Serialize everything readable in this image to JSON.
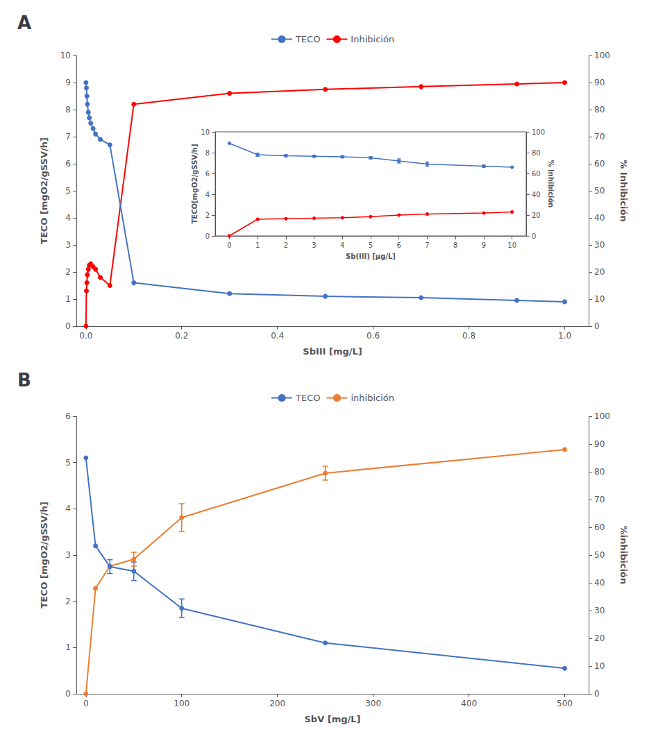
{
  "chart_data": [
    {
      "type": "line",
      "title": "A",
      "x": [
        0.0,
        0.001,
        0.002,
        0.003,
        0.005,
        0.007,
        0.01,
        0.015,
        0.02,
        0.03,
        0.05,
        0.1,
        0.3,
        0.5,
        0.7,
        0.9,
        1.0
      ],
      "xlabel": "SbIII [mg/L]",
      "ylabel": "TECO [mgO2/gSSV/h]",
      "y2label": "% Inhibición",
      "xlim": [
        -0.02,
        1.05
      ],
      "xticks": [
        {
          "value": 0,
          "label": "0.0"
        },
        0.2,
        0.4,
        0.6,
        0.8,
        {
          "value": 1,
          "label": "1.0"
        }
      ],
      "ylim": [
        0,
        10
      ],
      "yticks": [
        0,
        1,
        2,
        3,
        4,
        5,
        6,
        7,
        8,
        9,
        10
      ],
      "y2lim": [
        0,
        100
      ],
      "y2ticks": [
        0,
        10,
        20,
        30,
        40,
        50,
        60,
        70,
        80,
        90,
        100
      ],
      "grid": false,
      "legend": "top",
      "marker": "circle",
      "series": [
        {
          "name": "TECO",
          "color": "#4472C4",
          "values": [
            9.0,
            8.8,
            8.5,
            8.2,
            7.9,
            7.7,
            7.5,
            7.3,
            7.1,
            6.9,
            6.7,
            1.6,
            1.2,
            1.1,
            1.05,
            0.95,
            0.9
          ]
        },
        {
          "name": "Inhibición",
          "color": "#FF0000",
          "axis": "y2",
          "values": [
            0.0,
            13.0,
            16.0,
            19.0,
            21.0,
            22.5,
            23.0,
            22.0,
            21.0,
            18.0,
            15.0,
            82.0,
            86.0,
            87.5,
            88.5,
            89.5,
            90.0
          ]
        }
      ]
    },
    {
      "type": "line",
      "x": [
        0,
        1,
        2,
        3,
        4,
        5,
        6,
        7,
        9,
        10
      ],
      "xlabel": "Sb(III) [μg/L]",
      "ylabel": "TECO[mgO2/gSSV/h]",
      "y2label": "% Inhibición",
      "xlim": [
        -0.5,
        10.5
      ],
      "xticks": [
        0,
        1,
        2,
        3,
        4,
        5,
        6,
        7,
        8,
        9,
        10
      ],
      "ylim": [
        0,
        10
      ],
      "yticks": [
        0,
        2,
        4,
        6,
        8,
        10
      ],
      "y2lim": [
        0,
        100
      ],
      "y2ticks": [
        0,
        20,
        40,
        60,
        80,
        100
      ],
      "grid": false,
      "marker": "circle",
      "series": [
        {
          "color": "#4472C4",
          "values": [
            8.9,
            7.8,
            7.7,
            7.65,
            7.6,
            7.5,
            7.2,
            6.9,
            6.7,
            6.6
          ],
          "errors": [
            0.0,
            0.15,
            0.1,
            0.1,
            0.1,
            0.1,
            0.2,
            0.2,
            0.1,
            0.0
          ]
        },
        {
          "color": "#FF0000",
          "axis": "y2",
          "values": [
            0.0,
            16.0,
            16.5,
            17.0,
            17.5,
            18.5,
            20.0,
            21.0,
            22.0,
            23.0
          ]
        }
      ]
    },
    {
      "type": "line",
      "title": "B",
      "x": [
        0,
        10,
        25,
        50,
        100,
        250,
        500
      ],
      "xlabel": "SbV [mg/L]",
      "ylabel": "TECO [mgO2/gSSV/h]",
      "y2label": "%inhibición",
      "xlim": [
        -10,
        525
      ],
      "xticks": [
        0,
        100,
        200,
        300,
        400,
        500
      ],
      "ylim": [
        0,
        6
      ],
      "yticks": [
        0,
        1,
        2,
        3,
        4,
        5,
        6
      ],
      "y2lim": [
        0,
        100
      ],
      "y2ticks": [
        0,
        10,
        20,
        30,
        40,
        50,
        60,
        70,
        80,
        90,
        100
      ],
      "grid": false,
      "legend": "top",
      "marker": "circle",
      "series": [
        {
          "name": "TECO",
          "color": "#4472C4",
          "values": [
            5.1,
            3.2,
            2.75,
            2.65,
            1.85,
            1.1,
            0.55
          ],
          "errors": [
            0.0,
            0.0,
            0.15,
            0.2,
            0.2,
            0.0,
            0.0
          ]
        },
        {
          "name": "inhibición",
          "color": "#ED7D31",
          "axis": "y2",
          "values": [
            0.0,
            38.0,
            46.0,
            48.5,
            63.5,
            79.5,
            88.0
          ],
          "errors": [
            0.0,
            0.0,
            0.0,
            2.5,
            5.0,
            2.5,
            0.0
          ]
        }
      ]
    }
  ]
}
